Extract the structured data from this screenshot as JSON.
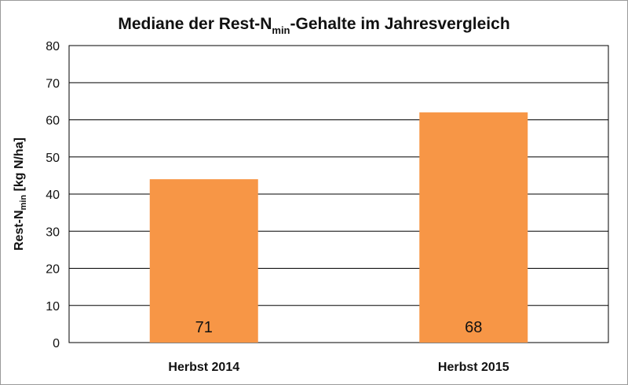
{
  "chart_data": {
    "type": "bar",
    "title": {
      "main": "Mediane der Rest-N",
      "sub": "min",
      "rest": "-Gehalte im Jahresvergleich"
    },
    "ylabel": {
      "main": "Rest-N",
      "sub": "min",
      "rest": " [kg N/ha]"
    },
    "xlabel": "",
    "categories": [
      "Herbst 2014",
      "Herbst 2015"
    ],
    "values": [
      44,
      62
    ],
    "bar_labels": [
      "71",
      "68"
    ],
    "ylim": [
      0,
      80
    ],
    "yticks": [
      0,
      10,
      20,
      30,
      40,
      50,
      60,
      70,
      80
    ],
    "grid": true,
    "legend": "none",
    "colors": {
      "bar": "#F79646",
      "grid": "#000000",
      "axis": "#000000"
    }
  }
}
